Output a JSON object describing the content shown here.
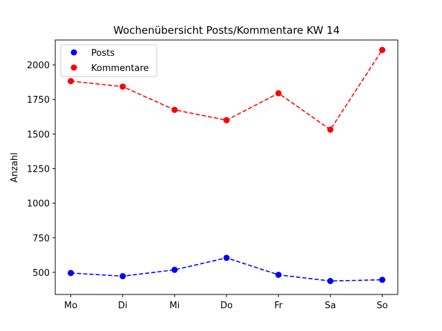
{
  "chart_data": {
    "type": "line",
    "title": "Wochenübersicht Posts/Kommentare KW 14",
    "xlabel": "",
    "ylabel": "Anzahl",
    "categories": [
      "Mo",
      "Di",
      "Mi",
      "Do",
      "Fr",
      "Sa",
      "So"
    ],
    "series": [
      {
        "name": "Posts",
        "color": "#0000ff",
        "linestyle": "dashed",
        "marker": "circle",
        "values": [
          495,
          472,
          518,
          605,
          482,
          437,
          446
        ]
      },
      {
        "name": "Kommentare",
        "color": "#ff0000",
        "linestyle": "dashed",
        "marker": "circle",
        "values": [
          1883,
          1843,
          1675,
          1600,
          1795,
          1532,
          2108
        ]
      }
    ],
    "ylim": [
      340,
      2180
    ],
    "yticks": [
      500,
      750,
      1000,
      1250,
      1500,
      1750,
      2000
    ],
    "grid": false,
    "legend_position": "top-left"
  }
}
